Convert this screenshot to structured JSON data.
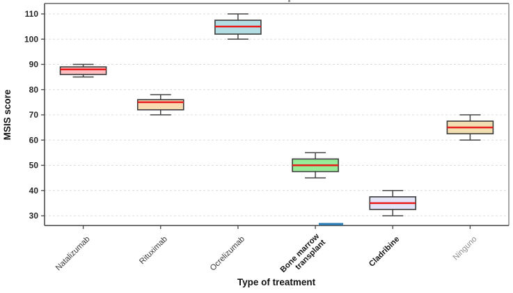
{
  "figure": {
    "y_axis_title": "MSIS score",
    "x_axis_title": "Type of treatment"
  },
  "chart_data": {
    "type": "boxplot",
    "title": "",
    "xlabel": "Type of treatment",
    "ylabel": "MSIS score",
    "ylim": [
      25,
      114
    ],
    "yticks": [
      30,
      40,
      50,
      60,
      70,
      80,
      90,
      100,
      110
    ],
    "grid": "horizontal-dashed",
    "legend": "none",
    "median_color": "#e81c1c",
    "box_edge_color": "#3b3b3b",
    "whisker_color": "#444444",
    "categories": [
      "Natalizumab",
      "Rituximab",
      "Ocrelizumab",
      "Bone marrow transplant",
      "Cladribine",
      "Ninguno"
    ],
    "series": [
      {
        "category": "Natalizumab",
        "label_lines": [
          "Natalizumab"
        ],
        "label_style": "normal",
        "box_fill": "#ffbdbf",
        "whisker_low": 85,
        "q1": 86,
        "median": 88,
        "q3": 89,
        "whisker_high": 90
      },
      {
        "category": "Rituximab",
        "label_lines": [
          "Rituximab"
        ],
        "label_style": "normal",
        "box_fill": "#fadcb3",
        "whisker_low": 70,
        "q1": 72,
        "median": 75,
        "q3": 76,
        "whisker_high": 78
      },
      {
        "category": "Ocrelizumab",
        "label_lines": [
          "Ocrelizumab"
        ],
        "label_style": "normal",
        "box_fill": "#b2dde2",
        "whisker_low": 100,
        "q1": 102,
        "median": 105,
        "q3": 107.5,
        "whisker_high": 110
      },
      {
        "category": "Bone marrow transplant",
        "label_lines": [
          "Bone marrow",
          "transplant"
        ],
        "label_style": "bold",
        "box_fill": "#98ec97",
        "whisker_low": 45,
        "q1": 47.5,
        "median": 50,
        "q3": 52.5,
        "whisker_high": 55
      },
      {
        "category": "Cladribine",
        "label_lines": [
          "Cladribine"
        ],
        "label_style": "bold",
        "box_fill": "#e4e4f8",
        "whisker_low": 30,
        "q1": 32.5,
        "median": 35,
        "q3": 37.5,
        "whisker_high": 40
      },
      {
        "category": "Ninguno",
        "label_lines": [
          "Ninguno"
        ],
        "label_style": "muted",
        "box_fill": "#f2deb0",
        "whisker_low": 60,
        "q1": 62.5,
        "median": 65,
        "q3": 67.5,
        "whisker_high": 70
      }
    ],
    "artifacts": {
      "axis_blue_segment_color": "#2e7fb8",
      "cropped_title_remnant_color": "#9a9a9a"
    }
  }
}
